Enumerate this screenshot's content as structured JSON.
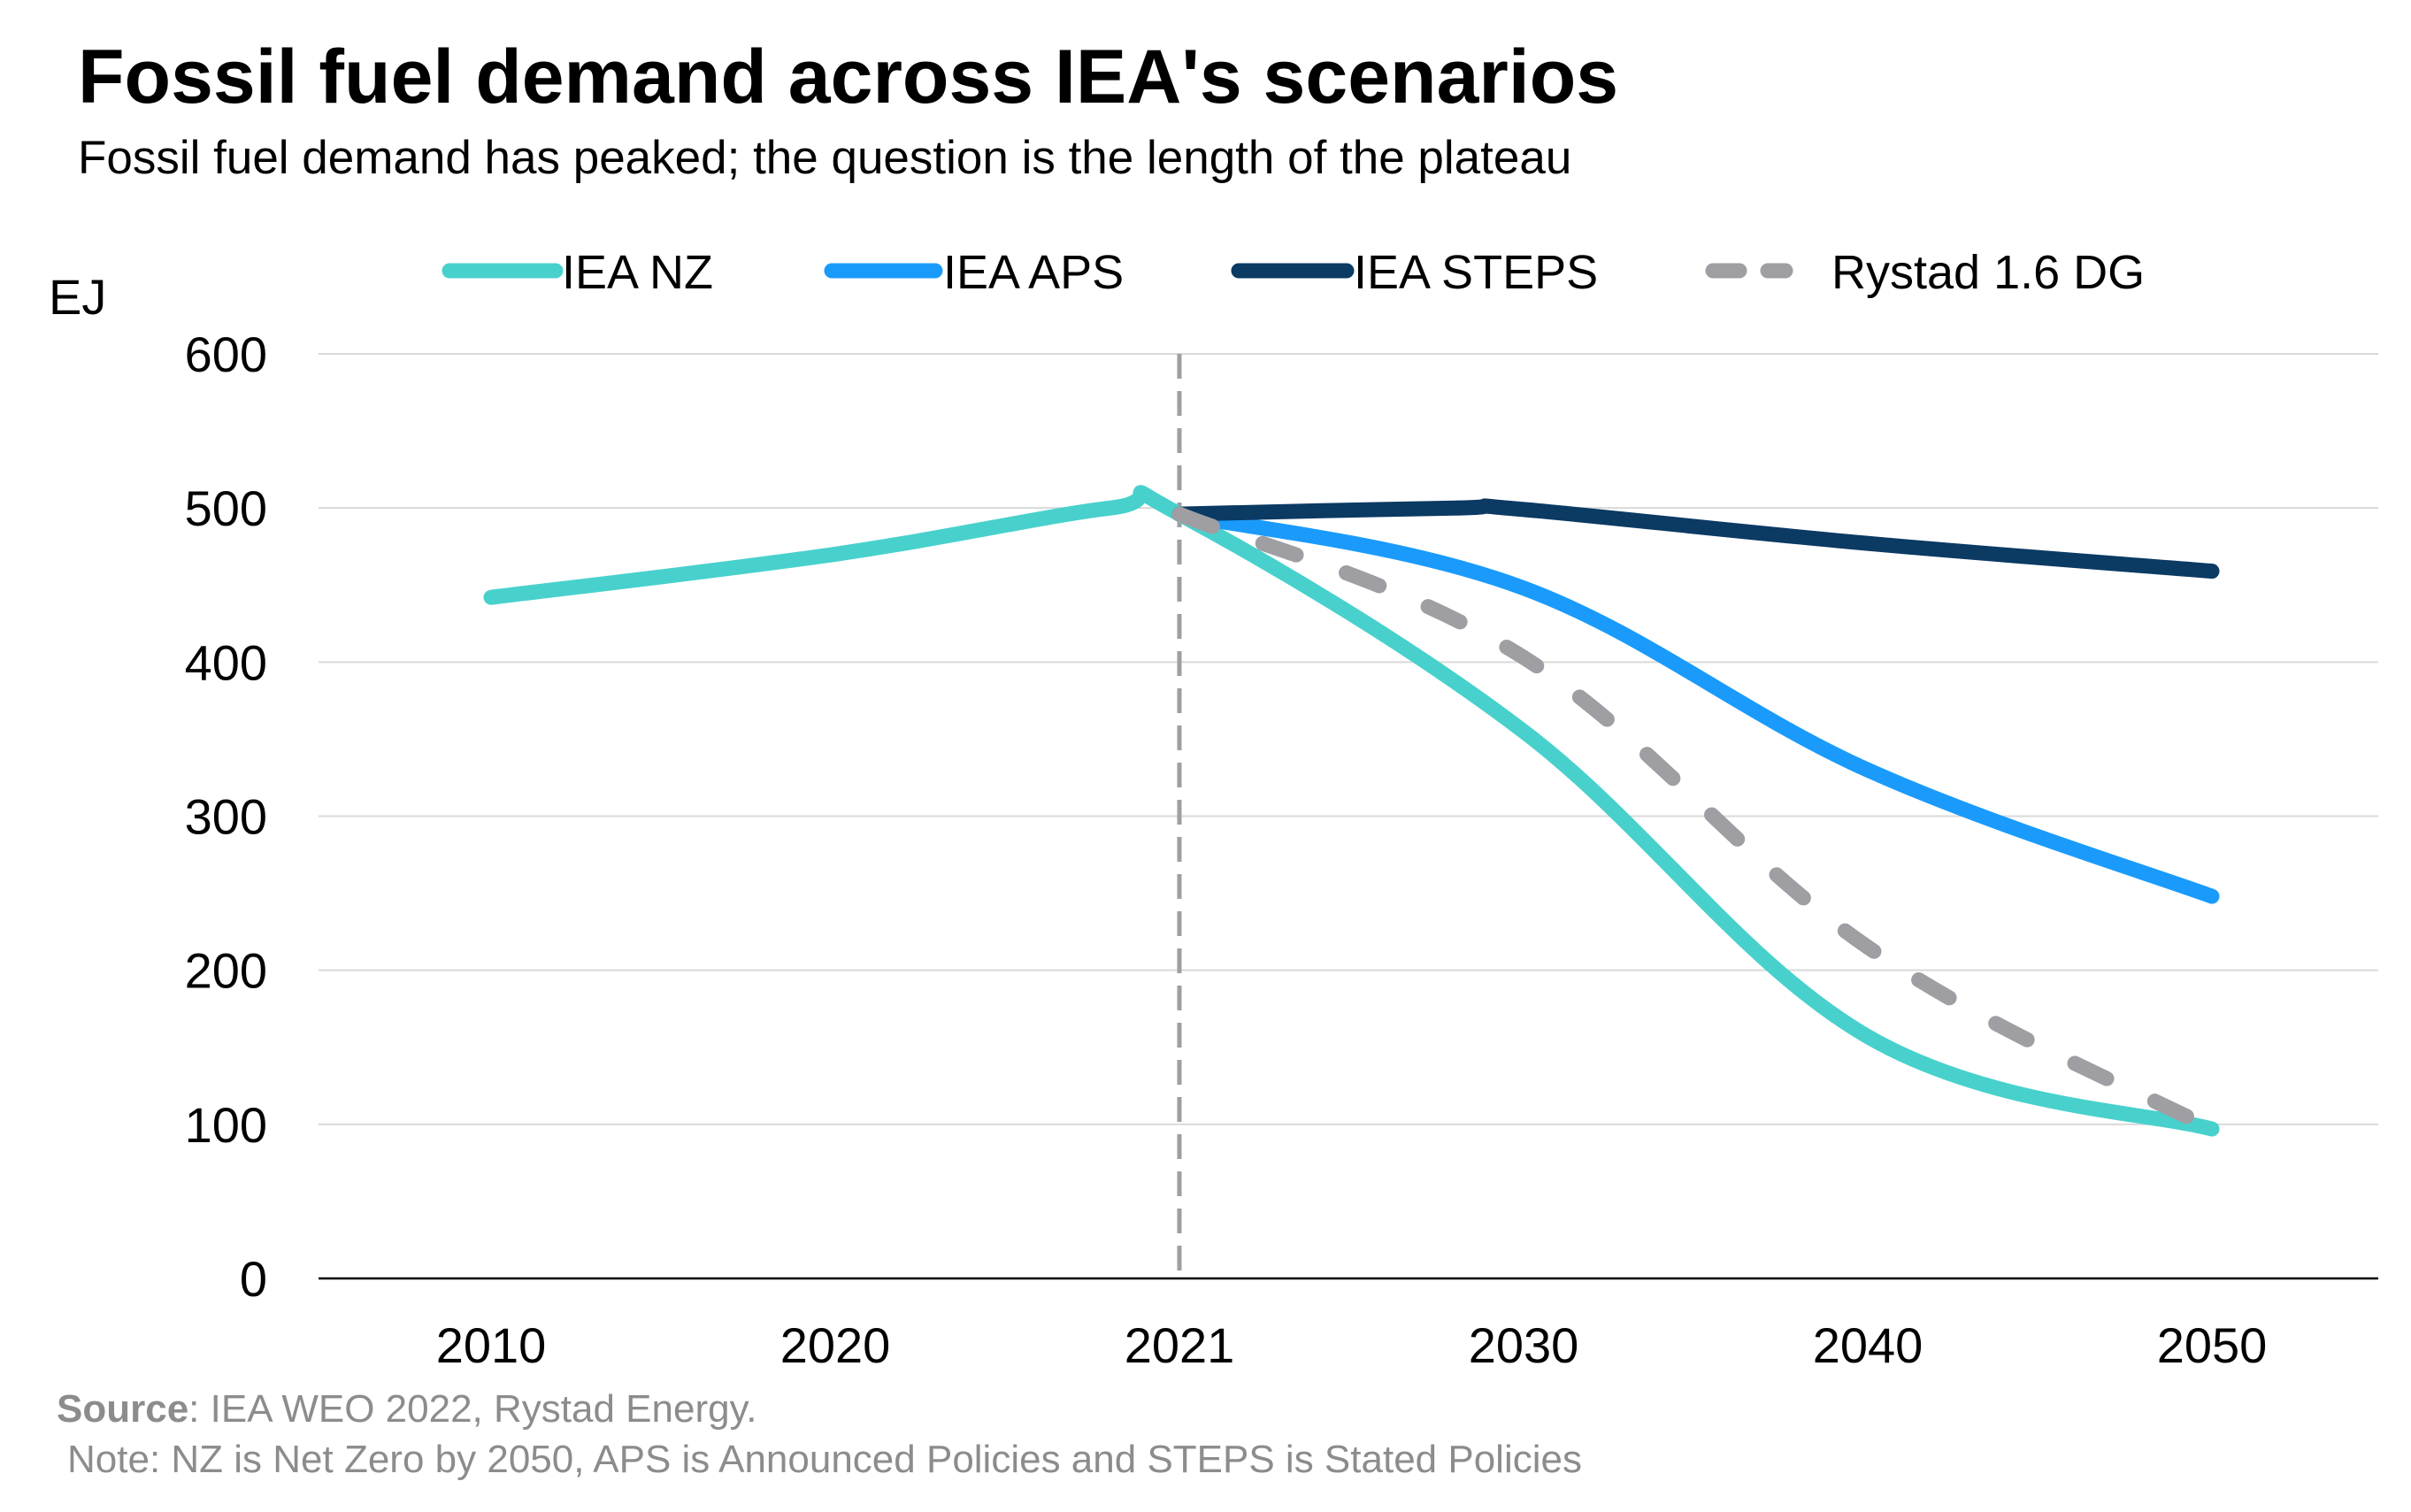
{
  "title": "Fossil fuel demand across IEA's scenarios",
  "subtitle": "Fossil fuel demand has peaked; the question is the length of the plateau",
  "source_label": "Source",
  "source_text": ": IEA WEO 2022, Rystad Energy.",
  "note": "Note: NZ is Net Zero by 2050, APS is Announced Policies and STEPS is Stated Policies",
  "chart_data": {
    "type": "line",
    "ylabel": "EJ",
    "ylim": [
      0,
      600
    ],
    "yticks": [
      0,
      100,
      200,
      300,
      400,
      500,
      600
    ],
    "categories": [
      "2010",
      "2020",
      "2021",
      "2030",
      "2040",
      "2050"
    ],
    "grid": true,
    "legend_position": "top",
    "reference_line": {
      "category": "2021",
      "style": "dashed",
      "color": "#9e9ea3"
    },
    "series": [
      {
        "name": "IEA NZ",
        "color": "#48d1cc",
        "style": "solid",
        "points": [
          [
            0,
            442
          ],
          [
            1,
            470
          ],
          [
            1.8,
            500
          ],
          [
            2,
            496
          ],
          [
            3,
            355
          ],
          [
            4,
            157
          ],
          [
            5,
            97
          ]
        ]
      },
      {
        "name": "IEA APS",
        "color": "#1a9bfb",
        "style": "solid",
        "points": [
          [
            2,
            496
          ],
          [
            3,
            448
          ],
          [
            4,
            330
          ],
          [
            5,
            248
          ]
        ]
      },
      {
        "name": "IEA STEPS",
        "color": "#0b3a63",
        "style": "solid",
        "points": [
          [
            2,
            496
          ],
          [
            2.8,
            500
          ],
          [
            3,
            499
          ],
          [
            4,
            477
          ],
          [
            5,
            459
          ]
        ]
      },
      {
        "name": "Rystad 1.6 DG",
        "color": "#9e9ea3",
        "style": "dashed",
        "points": [
          [
            2,
            496
          ],
          [
            3,
            403
          ],
          [
            4,
            215
          ],
          [
            5,
            97
          ]
        ]
      }
    ]
  }
}
